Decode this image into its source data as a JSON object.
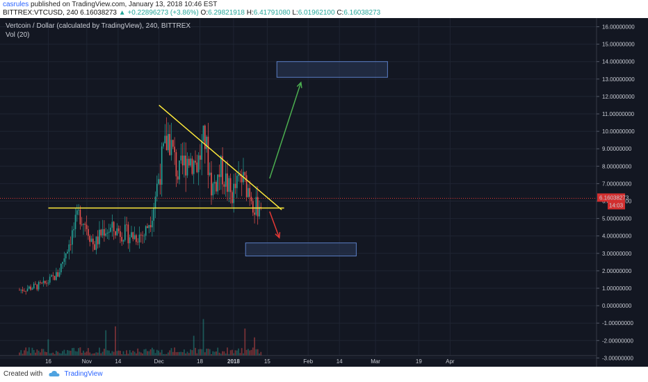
{
  "header": {
    "author": "casrules",
    "published_text": "published on TradingView.com, January 13, 2018 10:46 EST",
    "symbol": "BITTREX:VTCUSD, 240",
    "change_text": "+0.22896273 (+3.86%)",
    "ohlc": {
      "open_label": "O:",
      "open": "6.29821918",
      "high_label": "H:",
      "high": "6.41791080",
      "low_label": "L:",
      "low": "6.01962100",
      "close_label": "C:",
      "close": "6.16038273"
    },
    "last_price": "6.16038273"
  },
  "legend": {
    "main": "Vertcoin / Dollar (calculated by TradingView), 240, BITTREX",
    "indicator": "Vol (20)"
  },
  "footer": {
    "created_with": "Created with",
    "brand": "TradingView"
  },
  "colors": {
    "background": "#131722",
    "up": "#26a69a",
    "down": "#ef5350",
    "trendline": "#ffeb3b",
    "arrow_up": "#4caf50",
    "arrow_down": "#e53935",
    "target_box": "#5b7fc7",
    "price_line": "#e53935"
  },
  "price_label": {
    "value": "6.16038273",
    "countdown": "14:03"
  },
  "chart_data": {
    "type": "candlestick",
    "title": "Vertcoin / Dollar (calculated by TradingView), 240, BITTREX",
    "symbol": "BITTREX:VTCUSD",
    "interval": "240",
    "y_ticks": [
      "16.00000000",
      "15.00000000",
      "14.00000000",
      "13.00000000",
      "12.00000000",
      "11.00000000",
      "10.00000000",
      "9.00000000",
      "8.00000000",
      "7.00000000",
      "6.00000000",
      "5.00000000",
      "4.00000000",
      "3.00000000",
      "2.00000000",
      "1.00000000",
      "0.00000000",
      "-1.00000000",
      "-2.00000000",
      "-3.00000000"
    ],
    "ylim": [
      -3,
      16.5
    ],
    "x_ticks": [
      "16",
      "Nov",
      "14",
      "Dec",
      "18",
      "2018",
      "15",
      "Feb",
      "14",
      "Mar",
      "19",
      "Apr"
    ],
    "price_path": [
      {
        "date": "2017-10-04",
        "price": 0.9
      },
      {
        "date": "2017-10-14",
        "price": 1.2
      },
      {
        "date": "2017-10-20",
        "price": 1.8
      },
      {
        "date": "2017-10-24",
        "price": 3.4
      },
      {
        "date": "2017-10-29",
        "price": 5.3
      },
      {
        "date": "2017-11-01",
        "price": 4.6
      },
      {
        "date": "2017-11-04",
        "price": 3.4
      },
      {
        "date": "2017-11-08",
        "price": 4.4
      },
      {
        "date": "2017-11-14",
        "price": 4.3
      },
      {
        "date": "2017-11-20",
        "price": 4.0
      },
      {
        "date": "2017-11-25",
        "price": 4.1
      },
      {
        "date": "2017-11-28",
        "price": 5.3
      },
      {
        "date": "2017-12-02",
        "price": 8.2
      },
      {
        "date": "2017-12-05",
        "price": 9.8
      },
      {
        "date": "2017-12-09",
        "price": 7.4
      },
      {
        "date": "2017-12-13",
        "price": 8.6
      },
      {
        "date": "2017-12-17",
        "price": 8.1
      },
      {
        "date": "2017-12-20",
        "price": 9.6
      },
      {
        "date": "2017-12-23",
        "price": 6.7
      },
      {
        "date": "2017-12-27",
        "price": 7.8
      },
      {
        "date": "2017-12-31",
        "price": 6.3
      },
      {
        "date": "2018-01-04",
        "price": 7.3
      },
      {
        "date": "2018-01-08",
        "price": 6.6
      },
      {
        "date": "2018-01-10",
        "price": 5.5
      },
      {
        "date": "2018-01-13",
        "price": 6.16
      }
    ],
    "annotations": {
      "descending_trendline": [
        {
          "date": "2017-12-01",
          "price": 11.5
        },
        {
          "date": "2018-01-21",
          "price": 5.5
        }
      ],
      "support_line": [
        {
          "date": "2017-10-16",
          "price": 5.6
        },
        {
          "date": "2018-01-22",
          "price": 5.6
        }
      ],
      "upside_target_zone": {
        "from": "2018-01-19",
        "to": "2018-03-06",
        "low": 13.1,
        "high": 14.0
      },
      "downside_target_zone": {
        "from": "2018-01-06",
        "to": "2018-02-21",
        "low": 2.85,
        "high": 3.6
      },
      "up_arrow": [
        {
          "date": "2018-01-16",
          "price": 7.3
        },
        {
          "date": "2018-01-29",
          "price": 12.8
        }
      ],
      "down_arrow": [
        {
          "date": "2018-01-16",
          "price": 5.4
        },
        {
          "date": "2018-01-20",
          "price": 3.9
        }
      ]
    },
    "volume_indicator": "Vol (20)"
  }
}
